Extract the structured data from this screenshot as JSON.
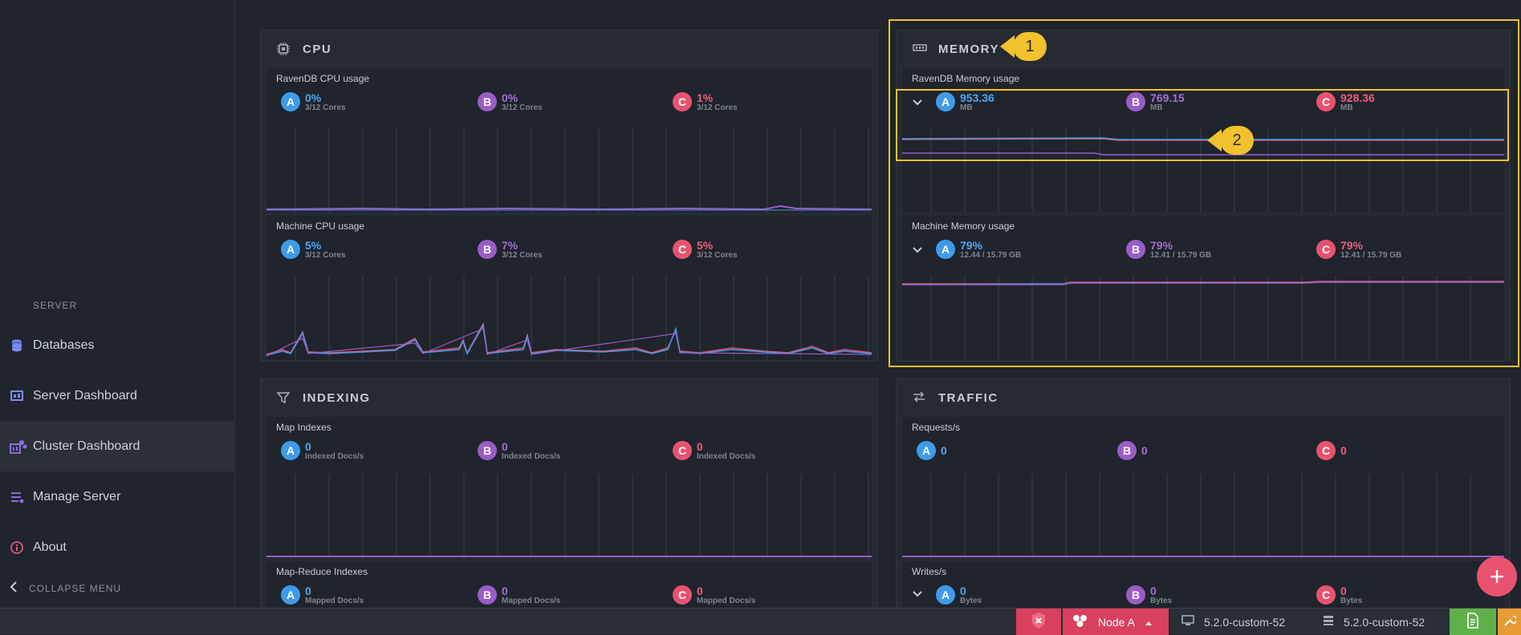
{
  "sidebar": {
    "section_label": "SERVER",
    "items": [
      {
        "label": "Databases",
        "icon": "databases-icon"
      },
      {
        "label": "Server Dashboard",
        "icon": "server-dashboard-icon"
      },
      {
        "label": "Cluster Dashboard",
        "icon": "cluster-dashboard-icon",
        "active": true
      },
      {
        "label": "Manage Server",
        "icon": "manage-server-icon"
      },
      {
        "label": "About",
        "icon": "about-icon"
      }
    ],
    "collapse_label": "COLLAPSE MENU"
  },
  "panels": {
    "cpu": {
      "title": "CPU",
      "ravendb": {
        "title": "RavenDB CPU usage",
        "nodes": [
          {
            "id": "A",
            "value": "0%",
            "sub": "3/12 Cores"
          },
          {
            "id": "B",
            "value": "0%",
            "sub": "3/12 Cores"
          },
          {
            "id": "C",
            "value": "1%",
            "sub": "3/12 Cores"
          }
        ]
      },
      "machine": {
        "title": "Machine CPU usage",
        "nodes": [
          {
            "id": "A",
            "value": "5%",
            "sub": "3/12 Cores"
          },
          {
            "id": "B",
            "value": "7%",
            "sub": "3/12 Cores"
          },
          {
            "id": "C",
            "value": "5%",
            "sub": "3/12 Cores"
          }
        ]
      }
    },
    "memory": {
      "title": "MEMORY",
      "ravendb": {
        "title": "RavenDB Memory usage",
        "nodes": [
          {
            "id": "A",
            "value": "953.36",
            "sub": "MB"
          },
          {
            "id": "B",
            "value": "769.15",
            "sub": "MB"
          },
          {
            "id": "C",
            "value": "928.36",
            "sub": "MB"
          }
        ]
      },
      "machine": {
        "title": "Machine Memory usage",
        "nodes": [
          {
            "id": "A",
            "value": "79%",
            "sub": "12.44 / 15.79 GB"
          },
          {
            "id": "B",
            "value": "79%",
            "sub": "12.41 / 15.79 GB"
          },
          {
            "id": "C",
            "value": "79%",
            "sub": "12.41 / 15.79 GB"
          }
        ]
      }
    },
    "indexing": {
      "title": "INDEXING",
      "map": {
        "title": "Map Indexes",
        "nodes": [
          {
            "id": "A",
            "value": "0",
            "sub": "Indexed Docs/s"
          },
          {
            "id": "B",
            "value": "0",
            "sub": "Indexed Docs/s"
          },
          {
            "id": "C",
            "value": "0",
            "sub": "Indexed Docs/s"
          }
        ]
      },
      "mapreduce": {
        "title": "Map-Reduce Indexes",
        "nodes": [
          {
            "id": "A",
            "value": "0",
            "sub": "Mapped Docs/s"
          },
          {
            "id": "B",
            "value": "0",
            "sub": "Mapped Docs/s"
          },
          {
            "id": "C",
            "value": "0",
            "sub": "Mapped Docs/s"
          }
        ]
      }
    },
    "traffic": {
      "title": "TRAFFIC",
      "requests": {
        "title": "Requests/s",
        "nodes": [
          {
            "id": "A",
            "value": "0"
          },
          {
            "id": "B",
            "value": "0"
          },
          {
            "id": "C",
            "value": "0"
          }
        ]
      },
      "writes": {
        "title": "Writes/s",
        "nodes": [
          {
            "id": "A",
            "value": "0",
            "sub": "Bytes"
          },
          {
            "id": "B",
            "value": "0",
            "sub": "Bytes"
          },
          {
            "id": "C",
            "value": "0",
            "sub": "Bytes"
          }
        ]
      }
    }
  },
  "callouts": [
    "1",
    "2"
  ],
  "statusbar": {
    "node_label": "Node A",
    "client_version": "5.2.0-custom-52",
    "server_version": "5.2.0-custom-52"
  },
  "colors": {
    "nodeA": "#3f9bea",
    "nodeB": "#9a5cc7",
    "nodeC": "#e9526f",
    "highlight": "#f2c12e"
  }
}
